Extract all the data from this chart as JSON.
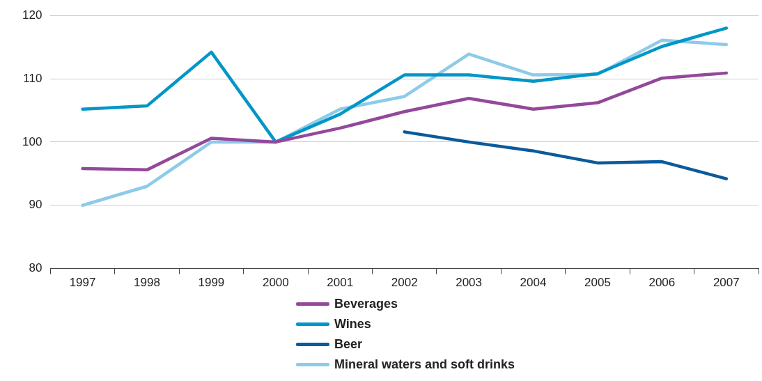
{
  "chart_data": {
    "type": "line",
    "categories": [
      "1997",
      "1998",
      "1999",
      "2000",
      "2001",
      "2002",
      "2003",
      "2004",
      "2005",
      "2006",
      "2007"
    ],
    "series": [
      {
        "name": "Beverages",
        "color": "#94489a",
        "values": [
          95.8,
          95.6,
          100.6,
          100,
          102.2,
          104.8,
          106.9,
          105.2,
          106.2,
          110.1,
          110.9
        ]
      },
      {
        "name": "Wines",
        "color": "#0096c8",
        "values": [
          105.2,
          105.7,
          114.2,
          100,
          104.4,
          110.6,
          110.6,
          109.6,
          110.8,
          115.1,
          118.0
        ]
      },
      {
        "name": "Beer",
        "color": "#0a5a9c",
        "values": [
          null,
          null,
          null,
          null,
          null,
          101.6,
          100,
          98.6,
          96.7,
          96.9,
          94.2
        ]
      },
      {
        "name": "Mineral waters and soft drinks",
        "color": "#8ccbe9",
        "values": [
          90,
          93,
          100,
          100,
          105.2,
          107.2,
          113.9,
          110.6,
          110.7,
          116.1,
          115.4
        ]
      }
    ],
    "ylim": [
      80,
      120
    ],
    "yticks": [
      80,
      90,
      100,
      110,
      120
    ],
    "grid": "y",
    "legend": "bottom",
    "marker": "none",
    "line_style": "solid"
  }
}
